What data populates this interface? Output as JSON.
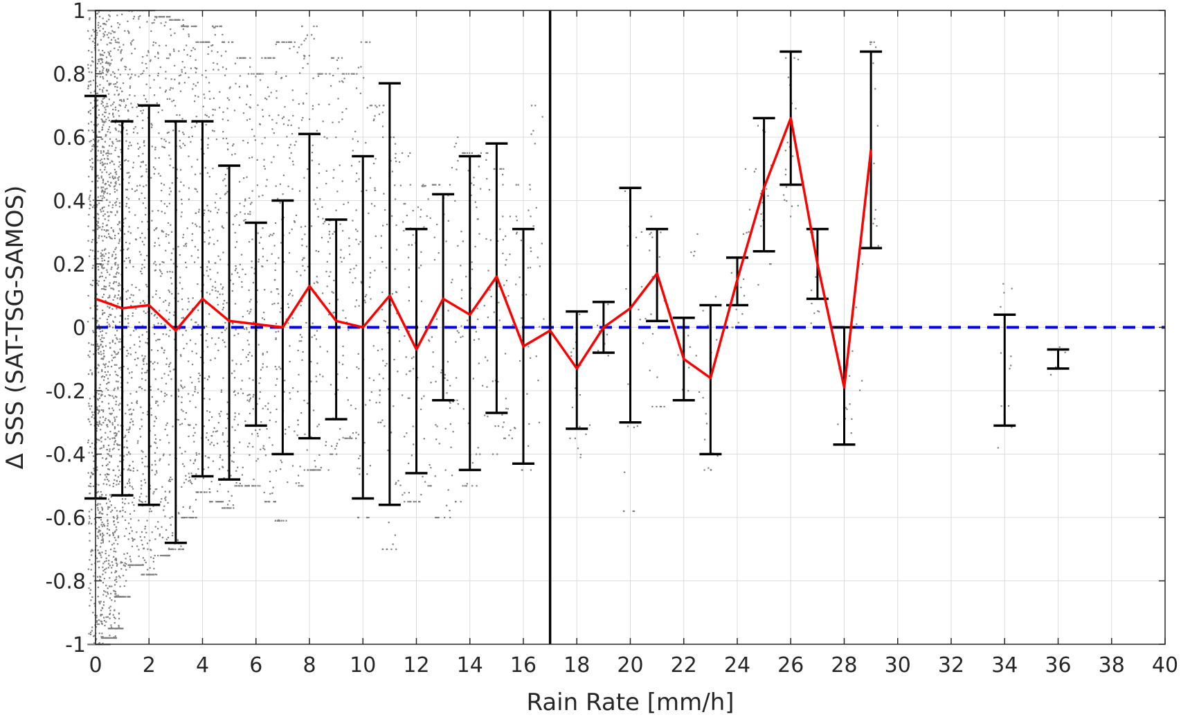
{
  "chart_data": {
    "type": "scatter",
    "title": "",
    "xlabel": "Rain Rate [mm/h]",
    "ylabel": "Δ SSS (SAT-TSG-SAMOS)",
    "xlim": [
      0,
      40
    ],
    "ylim": [
      -1,
      1
    ],
    "xticks": [
      "0",
      "2",
      "4",
      "6",
      "8",
      "10",
      "12",
      "14",
      "16",
      "18",
      "20",
      "22",
      "24",
      "26",
      "28",
      "30",
      "32",
      "34",
      "36",
      "38",
      "40"
    ],
    "yticks": [
      "-1",
      "-0.8",
      "-0.6",
      "-0.4",
      "-0.2",
      "0",
      "0.2",
      "0.4",
      "0.6",
      "0.8",
      "1"
    ],
    "grid": true,
    "legend": "none",
    "colors": {
      "scatter": "#808080",
      "mean_line": "#ff0000",
      "zero_line": "#0000ff",
      "error_bars": "#000000",
      "divider": "#000000",
      "grid": "#dcdcdc"
    },
    "vertical_line_x": 17,
    "zero_line_y": 0,
    "series": [
      {
        "type": "line",
        "x": [
          0,
          1,
          2,
          3,
          4,
          5,
          6,
          7,
          8,
          9,
          10,
          11,
          12,
          13,
          14,
          15,
          16,
          17,
          18,
          19,
          20,
          21,
          22,
          23,
          24,
          25,
          26,
          27,
          28,
          29
        ],
        "values": [
          0.09,
          0.06,
          0.07,
          -0.01,
          0.09,
          0.02,
          0.01,
          0.0,
          0.13,
          0.02,
          0.0,
          0.1,
          -0.07,
          0.09,
          0.04,
          0.16,
          -0.06,
          -0.01,
          -0.13,
          0.0,
          0.06,
          0.17,
          -0.1,
          -0.16,
          0.15,
          0.44,
          0.66,
          0.2,
          -0.19,
          0.56
        ]
      },
      {
        "type": "errorbar",
        "x": [
          0,
          1,
          2,
          3,
          4,
          5,
          6,
          7,
          8,
          9,
          10,
          11,
          12,
          13,
          14,
          15,
          16,
          18,
          19,
          20,
          21,
          22,
          23,
          24,
          25,
          26,
          27,
          28,
          29,
          34,
          36
        ],
        "upper": [
          0.73,
          0.65,
          0.7,
          0.65,
          0.65,
          0.51,
          0.33,
          0.4,
          0.61,
          0.34,
          0.54,
          0.77,
          0.31,
          0.42,
          0.54,
          0.58,
          0.31,
          0.05,
          0.08,
          0.44,
          0.31,
          0.03,
          0.07,
          0.22,
          0.66,
          0.87,
          0.31,
          0.0,
          0.87,
          0.04,
          -0.07
        ],
        "lower": [
          -0.54,
          -0.53,
          -0.56,
          -0.68,
          -0.47,
          -0.48,
          -0.31,
          -0.4,
          -0.35,
          -0.29,
          -0.54,
          -0.56,
          -0.46,
          -0.23,
          -0.45,
          -0.27,
          -0.43,
          -0.32,
          -0.08,
          -0.3,
          0.02,
          -0.23,
          -0.4,
          0.07,
          0.24,
          0.45,
          0.09,
          -0.37,
          0.25,
          -0.31,
          -0.13
        ]
      },
      {
        "type": "scatter",
        "columns": [
          {
            "x": 0,
            "min": -1.0,
            "max": 1.0,
            "n": 520
          },
          {
            "x": 0.25,
            "min": -1.0,
            "max": 1.0,
            "n": 420
          },
          {
            "x": 0.5,
            "min": -0.98,
            "max": 1.0,
            "n": 380
          },
          {
            "x": 0.75,
            "min": -0.95,
            "max": 1.0,
            "n": 320
          },
          {
            "x": 1,
            "min": -0.85,
            "max": 1.0,
            "n": 300
          },
          {
            "x": 1.5,
            "min": -0.75,
            "max": 1.0,
            "n": 260
          },
          {
            "x": 2,
            "min": -0.78,
            "max": 1.0,
            "n": 240
          },
          {
            "x": 2.5,
            "min": -0.72,
            "max": 0.98,
            "n": 200
          },
          {
            "x": 3,
            "min": -0.7,
            "max": 0.97,
            "n": 190
          },
          {
            "x": 3.5,
            "min": -0.6,
            "max": 0.95,
            "n": 160
          },
          {
            "x": 4,
            "min": -0.52,
            "max": 0.9,
            "n": 150
          },
          {
            "x": 4.5,
            "min": -0.55,
            "max": 0.95,
            "n": 130
          },
          {
            "x": 5,
            "min": -0.57,
            "max": 0.9,
            "n": 120
          },
          {
            "x": 5.5,
            "min": -0.5,
            "max": 0.85,
            "n": 100
          },
          {
            "x": 6,
            "min": -0.5,
            "max": 0.8,
            "n": 100
          },
          {
            "x": 6.5,
            "min": -0.55,
            "max": 0.85,
            "n": 90
          },
          {
            "x": 7,
            "min": -0.61,
            "max": 0.9,
            "n": 85
          },
          {
            "x": 7.5,
            "min": -0.5,
            "max": 0.9,
            "n": 75
          },
          {
            "x": 8,
            "min": -0.45,
            "max": 0.95,
            "n": 75
          },
          {
            "x": 8.5,
            "min": -0.45,
            "max": 0.8,
            "n": 65
          },
          {
            "x": 9,
            "min": -0.4,
            "max": 0.85,
            "n": 60
          },
          {
            "x": 9.5,
            "min": -0.35,
            "max": 0.8,
            "n": 55
          },
          {
            "x": 10,
            "min": -0.6,
            "max": 0.9,
            "n": 55
          },
          {
            "x": 10.5,
            "min": -0.3,
            "max": 0.7,
            "n": 45
          },
          {
            "x": 11,
            "min": -0.7,
            "max": 0.6,
            "n": 50
          },
          {
            "x": 11.5,
            "min": -0.55,
            "max": 0.55,
            "n": 40
          },
          {
            "x": 12,
            "min": -0.55,
            "max": 0.45,
            "n": 40
          },
          {
            "x": 12.5,
            "min": -0.5,
            "max": 0.45,
            "n": 35
          },
          {
            "x": 13,
            "min": -0.6,
            "max": 0.45,
            "n": 35
          },
          {
            "x": 13.5,
            "min": -0.55,
            "max": 0.6,
            "n": 35
          },
          {
            "x": 14,
            "min": -0.5,
            "max": 0.55,
            "n": 35
          },
          {
            "x": 14.5,
            "min": -0.4,
            "max": 0.55,
            "n": 30
          },
          {
            "x": 15,
            "min": -0.4,
            "max": 0.5,
            "n": 30
          },
          {
            "x": 15.5,
            "min": -0.35,
            "max": 0.35,
            "n": 25
          },
          {
            "x": 16,
            "min": -0.45,
            "max": 0.45,
            "n": 25
          },
          {
            "x": 16.5,
            "min": -0.3,
            "max": 0.7,
            "n": 20
          },
          {
            "x": 18,
            "min": -0.35,
            "max": 0.05,
            "n": 15
          },
          {
            "x": 18.3,
            "min": -0.42,
            "max": -0.3,
            "n": 6
          },
          {
            "x": 19,
            "min": -0.12,
            "max": 0.08,
            "n": 10
          },
          {
            "x": 20,
            "min": -0.58,
            "max": 0.44,
            "n": 20
          },
          {
            "x": 20.5,
            "min": -0.05,
            "max": 0.35,
            "n": 10
          },
          {
            "x": 21,
            "min": -0.25,
            "max": 0.3,
            "n": 15
          },
          {
            "x": 22,
            "min": -0.2,
            "max": 0.0,
            "n": 8
          },
          {
            "x": 22.5,
            "min": -0.3,
            "max": 0.3,
            "n": 10
          },
          {
            "x": 23,
            "min": -0.45,
            "max": 0.1,
            "n": 15
          },
          {
            "x": 24,
            "min": 0.0,
            "max": 0.22,
            "n": 10
          },
          {
            "x": 24.5,
            "min": 0.1,
            "max": 0.5,
            "n": 10
          },
          {
            "x": 25,
            "min": 0.2,
            "max": 0.65,
            "n": 15
          },
          {
            "x": 26,
            "min": 0.35,
            "max": 0.85,
            "n": 20
          },
          {
            "x": 27,
            "min": 0.0,
            "max": 0.3,
            "n": 10
          },
          {
            "x": 28,
            "min": -0.37,
            "max": 0.0,
            "n": 12
          },
          {
            "x": 28.5,
            "min": -0.2,
            "max": 0.2,
            "n": 6
          },
          {
            "x": 29,
            "min": 0.25,
            "max": 0.9,
            "n": 15
          },
          {
            "x": 34,
            "min": -0.38,
            "max": 0.22,
            "n": 15
          },
          {
            "x": 36,
            "min": -0.18,
            "max": -0.05,
            "n": 6
          }
        ]
      }
    ]
  }
}
